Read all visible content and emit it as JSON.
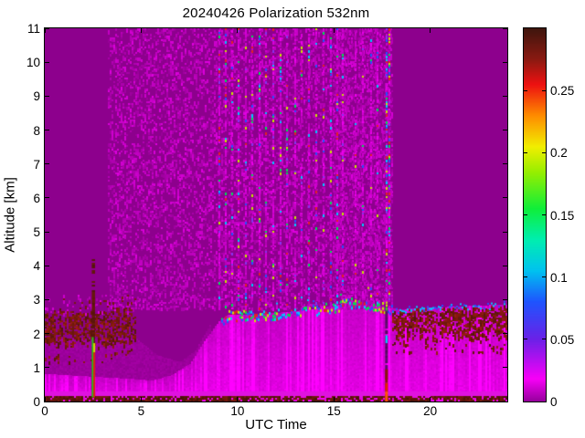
{
  "chart_data": {
    "type": "heatmap",
    "title": "20240426 Polarization 532nm",
    "xlabel": "UTC Time",
    "ylabel": "Altitude [km]",
    "x_range": [
      0,
      24
    ],
    "y_range": [
      0,
      11
    ],
    "x_ticks": [
      0,
      5,
      10,
      15,
      20
    ],
    "x_tick_labels": [
      "0",
      "5",
      "10",
      "15",
      "20"
    ],
    "y_ticks": [
      0,
      1,
      2,
      3,
      4,
      5,
      6,
      7,
      8,
      9,
      10,
      11
    ],
    "y_tick_labels": [
      "0",
      "1",
      "2",
      "3",
      "4",
      "5",
      "6",
      "7",
      "8",
      "9",
      "10",
      "11"
    ],
    "colorbar": {
      "range": [
        0,
        0.3
      ],
      "ticks": [
        0,
        0.05,
        0.1,
        0.15,
        0.2,
        0.25
      ],
      "tick_labels": [
        "0",
        "0.05",
        "0.1",
        "0.15",
        "0.2",
        "0.25"
      ],
      "stops": [
        [
          0.0,
          "#98009e"
        ],
        [
          0.018,
          "#f800f8"
        ],
        [
          0.05,
          "#6a22e8"
        ],
        [
          0.08,
          "#1f55ff"
        ],
        [
          0.105,
          "#00c3f0"
        ],
        [
          0.13,
          "#00efb0"
        ],
        [
          0.155,
          "#10ee3a"
        ],
        [
          0.185,
          "#9aee00"
        ],
        [
          0.205,
          "#f2ee00"
        ],
        [
          0.23,
          "#ff8c00"
        ],
        [
          0.255,
          "#ee1111"
        ],
        [
          0.275,
          "#8c1a12"
        ],
        [
          0.3,
          "#40160e"
        ]
      ]
    },
    "colors": {
      "page_bg": "#ffffff",
      "plot_bg": "#8d008d",
      "frame": "#000000",
      "text": "#000000"
    },
    "features": {
      "haze": {
        "x": [
          0,
          8.6
        ],
        "profile": [
          [
            0,
            1.85
          ],
          [
            4.7,
            1.85
          ],
          [
            5.8,
            1.35
          ],
          [
            7,
            1.15
          ],
          [
            7.8,
            1.5
          ],
          [
            8.6,
            2.3
          ]
        ],
        "color": "#9c009c"
      },
      "boundary_layer": {
        "top_profile": [
          [
            0,
            0.8
          ],
          [
            4.5,
            0.65
          ],
          [
            5.5,
            0.6
          ],
          [
            6.5,
            0.75
          ],
          [
            7.5,
            1.1
          ],
          [
            8.3,
            1.8
          ],
          [
            9.0,
            2.35
          ],
          [
            9.5,
            2.55
          ],
          [
            11,
            2.55
          ],
          [
            13,
            2.65
          ],
          [
            15,
            2.8
          ],
          [
            16,
            2.95
          ],
          [
            17,
            2.85
          ],
          [
            17.8,
            2.75
          ],
          [
            18.3,
            2.7
          ],
          [
            20,
            2.75
          ],
          [
            22,
            2.8
          ],
          [
            24,
            2.85
          ]
        ],
        "base_color": "#e900e9",
        "top_color": "#c400c4"
      },
      "patches": [
        {
          "x": [
            3.3,
            18.0
          ],
          "y": [
            2.75,
            11
          ],
          "density": 0.3,
          "colors": [
            "#a800a8",
            "#bb00bb",
            "#cc00cc"
          ]
        },
        {
          "x": [
            15.0,
            18.0
          ],
          "y": [
            2.75,
            11
          ],
          "density": 0.22,
          "colors": [
            "#a800a8",
            "#bb00bb",
            "#cc00cc"
          ]
        },
        {
          "x": [
            0,
            5.0
          ],
          "y": [
            2.58,
            3.12
          ],
          "density": 0.16,
          "colors": [
            "#bb00bb",
            "#cc00cc",
            "#77190d"
          ]
        },
        {
          "x": [
            0,
            4.6
          ],
          "y": [
            1.15,
            1.72
          ],
          "density": 0.07,
          "colors": [
            "#5f170b",
            "#77190d",
            "#8d1b10"
          ]
        },
        {
          "x": [
            18.05,
            24
          ],
          "y": [
            1.45,
            1.95
          ],
          "density": 0.09,
          "colors": [
            "#5f170b",
            "#77190d",
            "#8d1b10"
          ]
        }
      ],
      "stripes": {
        "y_min": 2.75,
        "y_max": 11,
        "dash_density": 0.5,
        "dash_colors": [
          "#c400c4",
          "#da00da"
        ],
        "accent_colors": [
          "#00c8ff",
          "#2a50ff",
          "#00dd55",
          "#c8e400",
          "#e42222",
          "#8833ee"
        ],
        "groups": [
          {
            "accent_density": 0.13,
            "x": [
              9.05,
              9.35,
              9.7,
              10.05,
              10.4,
              10.75,
              11.1,
              11.45,
              11.85,
              12.2,
              12.55,
              12.95,
              13.3,
              13.7,
              14.05,
              14.45,
              14.8,
              15.15,
              15.45
            ]
          },
          {
            "accent_density": 0.05,
            "x": [
              16.1,
              16.5,
              16.9,
              17.25
            ]
          },
          {
            "accent_density": 0.32,
            "x": [
              17.7,
              17.85
            ]
          }
        ]
      },
      "bands": {
        "left": {
          "x": [
            0,
            4.65
          ],
          "y": [
            1.72,
            2.62
          ],
          "density": 0.5,
          "colors": [
            "#5f170b",
            "#77190d",
            "#8d1b10"
          ]
        },
        "right": {
          "x": [
            18.05,
            24
          ],
          "bottom": 1.95,
          "top_offset": -0.05,
          "density": 0.6,
          "colors": [
            "#5f170b",
            "#77190d",
            "#8d1b10"
          ],
          "top_edge": {
            "band": 0.12,
            "density": 0.55,
            "colors": [
              "#00c8ff",
              "#2a50ff"
            ]
          }
        }
      },
      "cloud_top": {
        "x": [
          9.2,
          18.0
        ],
        "band": 0.15,
        "density": 0.55,
        "above_reach": 0.45,
        "above_density": 0.1,
        "colors": [
          "#00c8ff",
          "#2a50ff",
          "#00dd55",
          "#c8e400",
          "#e42222"
        ]
      },
      "surface": {
        "y": [
          0,
          0.14
        ],
        "density": 0.78,
        "colors": [
          "#4f1309",
          "#6b170c"
        ],
        "glow": {
          "y": [
            0.12,
            0.3
          ],
          "color": "#e012e0"
        }
      },
      "spikes": [
        {
          "x": [
            2.44,
            2.61
          ],
          "y": [
            0,
            4.35
          ],
          "density": 0.92,
          "color": "#5c160b",
          "parts": [
            {
              "x": [
                2.44,
                2.52
              ],
              "y": [
                0.12,
                1.9
              ],
              "color": "#2bbf1f"
            },
            {
              "x": [
                2.52,
                2.6
              ],
              "y": [
                0.12,
                1.45
              ],
              "color": "#e02010"
            },
            {
              "x": [
                2.52,
                2.6
              ],
              "y": [
                1.45,
                1.72
              ],
              "color": "#d8d800"
            }
          ]
        },
        {
          "x": [
            17.66,
            17.8
          ],
          "y": [
            0,
            2.78
          ],
          "density": 0.95,
          "color": "#570d63",
          "parts": [
            {
              "x": [
                17.66,
                17.8
              ],
              "y": [
                0,
                0.3
              ],
              "color": "#ff5500"
            },
            {
              "x": [
                17.66,
                17.8
              ],
              "y": [
                0.3,
                0.55
              ],
              "color": "#e42200"
            },
            {
              "x": [
                17.66,
                17.8
              ],
              "y": [
                0.55,
                0.95
              ],
              "color": "#8d1408"
            },
            {
              "x": [
                17.68,
                17.78
              ],
              "y": [
                1.72,
                1.95
              ],
              "color": "#00d2ff"
            },
            {
              "x": [
                17.68,
                17.78
              ],
              "y": [
                2.68,
                2.78
              ],
              "color": "#2bd22b"
            }
          ]
        }
      ]
    }
  }
}
